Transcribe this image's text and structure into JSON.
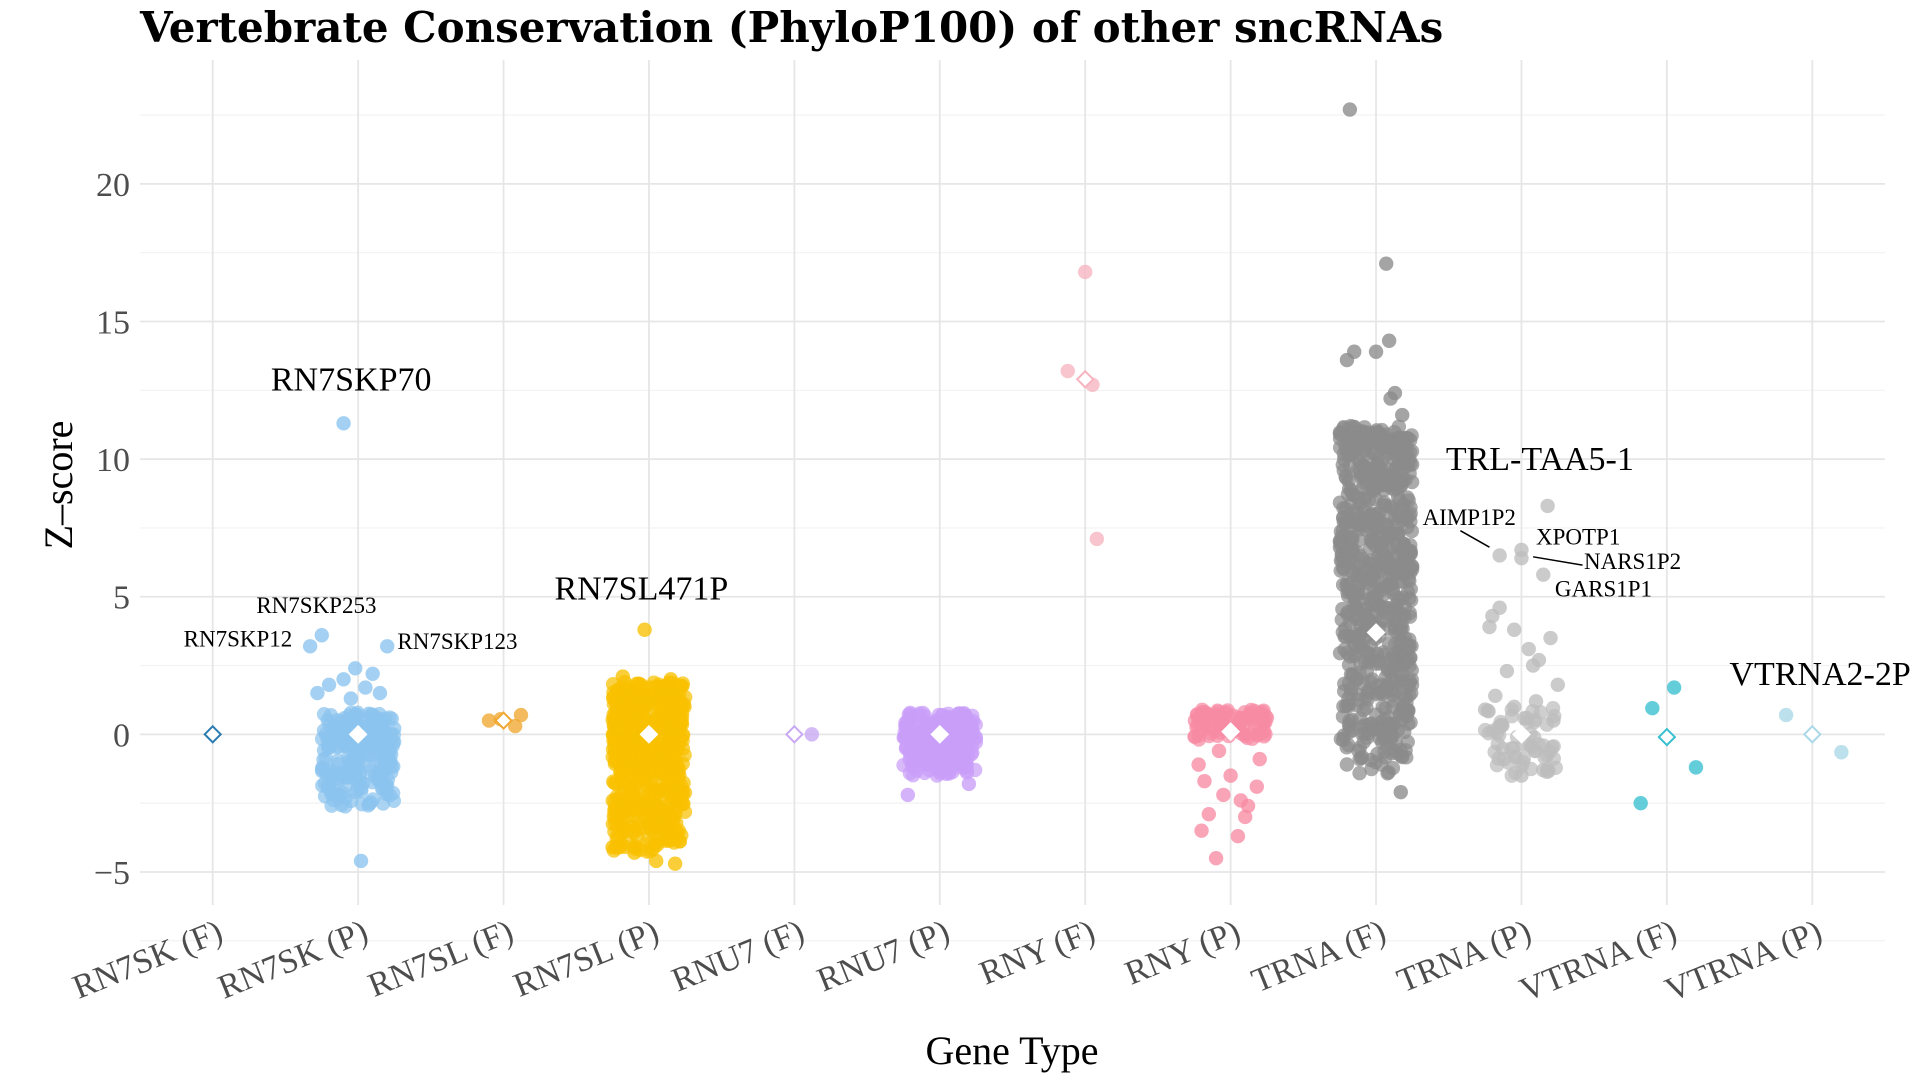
{
  "chart_data": {
    "type": "scatter",
    "title": "Vertebrate Conservation (PhyloP100) of other sncRNAs",
    "xlabel": "Gene Type",
    "ylabel": "Z–score",
    "ylim": [
      -6.2,
      24.5
    ],
    "yticks": [
      -5,
      0,
      5,
      10,
      15,
      20
    ],
    "ytick_labels": [
      "−5",
      "0",
      "5",
      "10",
      "15",
      "20"
    ],
    "grid": true,
    "legend": "none",
    "categories": [
      "RN7SK (F)",
      "RN7SK (P)",
      "RN7SL (F)",
      "RN7SL (P)",
      "RNU7 (F)",
      "RNU7 (P)",
      "RNY (F)",
      "RNY (P)",
      "TRNA (F)",
      "TRNA (P)",
      "VTRNA (F)",
      "VTRNA (P)"
    ],
    "series": [
      {
        "category": "RN7SK (F)",
        "color": "#2b7bb0",
        "mean": 0.0,
        "outliers": [],
        "bulk": {
          "n": 0,
          "ymin": 0,
          "ymax": 0
        }
      },
      {
        "category": "RN7SK (P)",
        "color": "#8ac4ef",
        "mean": 0.0,
        "outliers": [
          [
            -0.1,
            11.3
          ],
          [
            -0.25,
            3.6
          ],
          [
            -0.33,
            3.2
          ],
          [
            0.2,
            3.2
          ],
          [
            -0.02,
            2.4
          ],
          [
            -0.1,
            2.0
          ],
          [
            0.1,
            2.2
          ],
          [
            -0.2,
            1.8
          ],
          [
            0.15,
            1.5
          ],
          [
            -0.28,
            1.5
          ],
          [
            0.02,
            -4.6
          ],
          [
            0.05,
            1.7
          ],
          [
            -0.05,
            1.3
          ]
        ],
        "bulk": {
          "n": 230,
          "ymin": -2.7,
          "ymax": 0.8
        }
      },
      {
        "category": "RN7SL (F)",
        "color": "#f0a830",
        "mean": 0.5,
        "outliers": [
          [
            -0.1,
            0.5
          ],
          [
            0.08,
            0.3
          ],
          [
            0.12,
            0.7
          ],
          [
            -0.02,
            0.55
          ]
        ],
        "bulk": {
          "n": 0,
          "ymin": 0,
          "ymax": 0
        }
      },
      {
        "category": "RN7SL (P)",
        "color": "#f8c000",
        "mean": 0.0,
        "outliers": [
          [
            -0.03,
            3.8
          ],
          [
            -0.18,
            2.1
          ],
          [
            0.15,
            2.0
          ],
          [
            -0.1,
            -4.3
          ],
          [
            0.05,
            -4.6
          ],
          [
            0.18,
            -4.7
          ],
          [
            -0.25,
            -4.1
          ]
        ],
        "bulk": {
          "n": 600,
          "ymin": -4.3,
          "ymax": 1.9
        }
      },
      {
        "category": "RNU7 (F)",
        "color": "#c9a8f4",
        "mean": 0.0,
        "outliers": [
          [
            0.12,
            0.0
          ]
        ],
        "bulk": {
          "n": 0,
          "ymin": 0,
          "ymax": 0
        }
      },
      {
        "category": "RNU7 (P)",
        "color": "#c99ef8",
        "mean": 0.0,
        "outliers": [
          [
            -0.22,
            -2.2
          ],
          [
            0.2,
            -1.8
          ]
        ],
        "bulk": {
          "n": 230,
          "ymin": -1.5,
          "ymax": 0.8
        }
      },
      {
        "category": "RNY (F)",
        "color": "#f6b3c0",
        "mean": 12.9,
        "outliers": [
          [
            0.0,
            16.8
          ],
          [
            -0.12,
            13.2
          ],
          [
            0.05,
            12.7
          ],
          [
            0.08,
            7.1
          ]
        ],
        "bulk": {
          "n": 0,
          "ymin": 0,
          "ymax": 0
        }
      },
      {
        "category": "RNY (P)",
        "color": "#f78aa3",
        "mean": 0.1,
        "outliers": [
          [
            -0.2,
            -3.5
          ],
          [
            -0.1,
            -4.5
          ],
          [
            0.05,
            -3.7
          ],
          [
            0.12,
            -2.6
          ],
          [
            -0.18,
            -1.7
          ],
          [
            0.2,
            -0.9
          ],
          [
            -0.05,
            -2.2
          ],
          [
            0.1,
            -3.0
          ],
          [
            -0.15,
            -2.9
          ],
          [
            0.0,
            -1.5
          ],
          [
            0.18,
            -1.9
          ],
          [
            -0.22,
            -1.1
          ],
          [
            0.07,
            -2.4
          ],
          [
            -0.08,
            -0.6
          ]
        ],
        "bulk": {
          "n": 90,
          "ymin": -0.2,
          "ymax": 0.9
        }
      },
      {
        "category": "TRNA (F)",
        "color": "#8a8a8a",
        "mean": 3.7,
        "outliers": [
          [
            -0.18,
            22.7
          ],
          [
            0.07,
            17.1
          ],
          [
            -0.15,
            13.9
          ],
          [
            -0.2,
            13.6
          ],
          [
            0.0,
            13.9
          ],
          [
            0.09,
            14.3
          ],
          [
            0.1,
            12.2
          ],
          [
            0.13,
            12.4
          ],
          [
            0.18,
            11.6
          ],
          [
            0.17,
            -2.1
          ]
        ],
        "bulk": {
          "n": 700,
          "ymin": -1.5,
          "ymax": 11.2
        }
      },
      {
        "category": "TRNA (P)",
        "color": "#bdbdbd",
        "mean": 0.0,
        "outliers": [
          [
            0.18,
            8.3
          ],
          [
            -0.15,
            6.5
          ],
          [
            0.0,
            6.7
          ],
          [
            0.0,
            6.4
          ],
          [
            0.15,
            5.8
          ],
          [
            -0.15,
            4.6
          ],
          [
            -0.2,
            4.3
          ],
          [
            -0.22,
            3.9
          ],
          [
            -0.05,
            3.8
          ],
          [
            0.05,
            3.1
          ],
          [
            0.12,
            2.7
          ],
          [
            0.2,
            3.5
          ],
          [
            -0.1,
            2.3
          ],
          [
            0.25,
            1.8
          ],
          [
            -0.18,
            1.4
          ],
          [
            0.08,
            2.5
          ],
          [
            -0.25,
            0.9
          ],
          [
            0.22,
            0.5
          ],
          [
            -0.12,
            -0.9
          ],
          [
            0.15,
            -1.3
          ],
          [
            0.0,
            -1.5
          ],
          [
            -0.05,
            1.0
          ],
          [
            0.1,
            1.2
          ]
        ],
        "bulk": {
          "n": 60,
          "ymin": -1.6,
          "ymax": 1.0
        }
      },
      {
        "category": "VTRNA (F)",
        "color": "#38bfd0",
        "mean": -0.1,
        "outliers": [
          [
            0.05,
            1.7
          ],
          [
            -0.1,
            0.95
          ],
          [
            -0.18,
            -2.5
          ],
          [
            0.2,
            -1.2
          ]
        ],
        "bulk": {
          "n": 0,
          "ymin": 0,
          "ymax": 0
        }
      },
      {
        "category": "VTRNA (P)",
        "color": "#a9d8e8",
        "mean": 0.0,
        "outliers": [
          [
            -0.18,
            0.7
          ],
          [
            0.2,
            -0.65
          ]
        ],
        "bulk": {
          "n": 0,
          "ymin": 0,
          "ymax": 0
        }
      }
    ],
    "annotations": [
      {
        "text": "RN7SKP70",
        "size": "big",
        "cat": 1,
        "y": 11.3,
        "tx": -0.6,
        "ty": 12.5
      },
      {
        "text": "RN7SKP253",
        "size": "small",
        "cat": 1,
        "y": 3.6,
        "tx": -0.7,
        "ty": 4.4
      },
      {
        "text": "RN7SKP12",
        "size": "small",
        "cat": 1,
        "y": 3.2,
        "tx": -1.2,
        "ty": 3.2
      },
      {
        "text": "RN7SKP123",
        "size": "small",
        "cat": 1,
        "y": 3.2,
        "tx": 0.27,
        "ty": 3.1
      },
      {
        "text": "RN7SL471P",
        "size": "big",
        "cat": 3,
        "y": 3.8,
        "tx": -0.65,
        "ty": 4.9
      },
      {
        "text": "TRL-TAA5-1",
        "size": "big",
        "cat": 9,
        "y": 8.3,
        "tx": -0.52,
        "ty": 9.6
      },
      {
        "text": "AIMP1P2",
        "size": "small",
        "cat": 9,
        "y": 6.5,
        "tx": -0.68,
        "ty": 7.6,
        "line": [
          [
            -0.42,
            7.4
          ],
          [
            -0.22,
            6.8
          ]
        ]
      },
      {
        "text": "XPOTP1",
        "size": "small",
        "cat": 9,
        "y": 6.7,
        "tx": 0.1,
        "ty": 6.9
      },
      {
        "text": "NARS1P2",
        "size": "small",
        "cat": 9,
        "y": 6.4,
        "tx": 0.43,
        "ty": 6.0,
        "line": [
          [
            0.08,
            6.45
          ],
          [
            0.42,
            6.15
          ]
        ]
      },
      {
        "text": "GARS1P1",
        "size": "small",
        "cat": 9,
        "y": 5.8,
        "tx": 0.23,
        "ty": 5.0
      },
      {
        "text": "VTRNA2-2P",
        "size": "big",
        "cat": 11,
        "y": 0.7,
        "tx": -0.57,
        "ty": 1.8
      }
    ]
  }
}
